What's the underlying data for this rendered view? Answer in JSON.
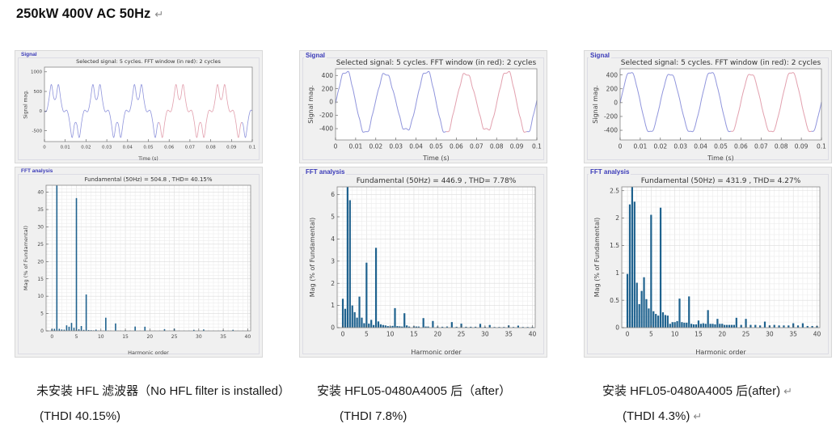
{
  "header": {
    "title": "250kW 400V AC 50Hz",
    "pilcrow": "↵"
  },
  "colors": {
    "bar": "#1f628e",
    "line_blue": "#9095dc",
    "line_red": "#e2a0ae",
    "panel_bg": "#f0f0f0",
    "panel_label": "#3a3ab8",
    "axes_border": "#888888",
    "grid_minor": "#ececec",
    "grid_major": "#dcdcdc",
    "tick_text": "#444444",
    "title_text": "#333333"
  },
  "columns": [
    {
      "caption": {
        "line1": "未安装 HFL 滤波器（No HFL filter is installed）",
        "line2": "(THDI 40.15%)",
        "pilcrow1": "",
        "pilcrow2": ""
      }
    },
    {
      "caption": {
        "line1": "安装 HFL05-0480A4005 后（after）",
        "line2": "(THDI 7.8%)",
        "pilcrow1": "",
        "pilcrow2": ""
      }
    },
    {
      "caption": {
        "line1": "安装 HFL05-0480A4005 后(after)",
        "line2": "(THDI 4.3%)",
        "pilcrow1": "↵",
        "pilcrow2": "↵"
      }
    }
  ],
  "chart_data": [
    {
      "type": "line",
      "panel_label": "Signal",
      "title": "Selected signal: 5 cycles. FFT window (in red): 2 cycles",
      "xlabel": "Time (s)",
      "ylabel": "Signal mag.",
      "xlim": [
        0,
        0.1
      ],
      "ylim": [
        -780,
        1120
      ],
      "xticks": [
        0,
        0.01,
        0.02,
        0.03,
        0.04,
        0.05,
        0.06,
        0.07,
        0.08,
        0.09,
        0.1
      ],
      "yticks": [
        -500,
        0,
        500,
        1000
      ],
      "grid": false,
      "fft_window": [
        0.055,
        0.095
      ],
      "harmonics": [
        [
          1,
          504.8,
          0
        ],
        [
          5,
          193,
          180
        ],
        [
          7,
          52,
          0
        ],
        [
          11,
          19,
          180
        ],
        [
          13,
          10.6,
          0
        ]
      ],
      "pad": [
        36,
        20,
        12,
        26
      ],
      "tick_font": 5.5,
      "title_font": 6.5,
      "line_w": 0.8
    },
    {
      "type": "bar",
      "panel_label": "FFT analysis",
      "title": "Fundamental (50Hz) = 504.8 , THD= 40.15%",
      "xlabel": "Harmonic order",
      "ylabel": "Mag (% of Fundamental)",
      "xlim": [
        -1.2,
        40.6
      ],
      "ylim": [
        0,
        42
      ],
      "xticks": [
        0,
        5,
        10,
        15,
        20,
        25,
        30,
        35,
        40
      ],
      "yticks": [
        0,
        5,
        10,
        15,
        20,
        25,
        30,
        35,
        40
      ],
      "grid": true,
      "grid_minor_x": 1,
      "grid_minor_y": 1,
      "bar_w": 1.6,
      "bars": [
        [
          0,
          0.6
        ],
        [
          0.5,
          0.6
        ],
        [
          1,
          100
        ],
        [
          1.5,
          0.6
        ],
        [
          2,
          0.4
        ],
        [
          2.5,
          0.35
        ],
        [
          3,
          1.6
        ],
        [
          3.5,
          1.2
        ],
        [
          4,
          2.3
        ],
        [
          4.5,
          0.9
        ],
        [
          5,
          38.3
        ],
        [
          5.5,
          0.5
        ],
        [
          6,
          1.4
        ],
        [
          6.5,
          0.3
        ],
        [
          7,
          10.5
        ],
        [
          7.5,
          0.25
        ],
        [
          8,
          0.2
        ],
        [
          8.5,
          0.15
        ],
        [
          9,
          0.35
        ],
        [
          9.5,
          0.1
        ],
        [
          10,
          0.12
        ],
        [
          10.5,
          0.1
        ],
        [
          11,
          3.8
        ],
        [
          11.5,
          0.12
        ],
        [
          12,
          0.1
        ],
        [
          13,
          2.15
        ],
        [
          13.5,
          0.1
        ],
        [
          14,
          0.1
        ],
        [
          15,
          0.15
        ],
        [
          16,
          0.1
        ],
        [
          17,
          1.25
        ],
        [
          18,
          0.08
        ],
        [
          19,
          1.2
        ],
        [
          20,
          0.07
        ],
        [
          21,
          0.07
        ],
        [
          22,
          0.08
        ],
        [
          23,
          0.5
        ],
        [
          24,
          0.06
        ],
        [
          25,
          0.65
        ],
        [
          26,
          0.06
        ],
        [
          27,
          0.06
        ],
        [
          28,
          0.06
        ],
        [
          29,
          0.3
        ],
        [
          30,
          0.05
        ],
        [
          31,
          0.4
        ],
        [
          32,
          0.05
        ],
        [
          33,
          0.05
        ],
        [
          34,
          0.05
        ],
        [
          35,
          0.2
        ],
        [
          36,
          0.05
        ],
        [
          37,
          0.3
        ],
        [
          38,
          0.04
        ],
        [
          39,
          0.05
        ],
        [
          40,
          0.04
        ]
      ],
      "pad": [
        38,
        22,
        14,
        32
      ],
      "tick_font": 6,
      "title_font": 7
    },
    {
      "type": "line",
      "panel_label": "Signal",
      "title": "Selected signal: 5 cycles. FFT window (in red): 2 cycles",
      "xlabel": "Time (s)",
      "ylabel": "Signal mag.",
      "xlim": [
        0,
        0.1
      ],
      "ylim": [
        -570,
        500
      ],
      "xticks": [
        0,
        0.01,
        0.02,
        0.03,
        0.04,
        0.05,
        0.06,
        0.07,
        0.08,
        0.09,
        0.1
      ],
      "yticks": [
        -400,
        -200,
        0,
        200,
        400
      ],
      "grid": false,
      "fft_window": [
        0.055,
        0.095
      ],
      "harmonics": [
        [
          1,
          446.9,
          0
        ],
        [
          1.5,
          25.7,
          -90
        ],
        [
          3.5,
          6.3,
          0
        ],
        [
          5,
          13.1,
          180
        ],
        [
          7,
          16.1,
          0
        ],
        [
          11,
          3.9,
          180
        ]
      ],
      "pad": [
        44,
        22,
        12,
        28
      ],
      "tick_font": 7.5,
      "title_font": 9,
      "line_w": 1
    },
    {
      "type": "bar",
      "panel_label": "FFT analysis",
      "title": "Fundamental (50Hz) = 446.9 , THD= 7.78%",
      "xlabel": "Harmonic order",
      "ylabel": "Mag (% of Fundamental)",
      "xlim": [
        -1.2,
        40.6
      ],
      "ylim": [
        0,
        6.35
      ],
      "xticks": [
        0,
        5,
        10,
        15,
        20,
        25,
        30,
        35,
        40
      ],
      "yticks": [
        0,
        1,
        2,
        3,
        4,
        5,
        6
      ],
      "grid": true,
      "grid_minor_x": 1,
      "grid_minor_y": 0.2,
      "bar_w": 2.2,
      "bars": [
        [
          0,
          1.3
        ],
        [
          0.5,
          0.85
        ],
        [
          1,
          100
        ],
        [
          1.5,
          5.75
        ],
        [
          2,
          1.0
        ],
        [
          2.5,
          0.7
        ],
        [
          3,
          0.45
        ],
        [
          3.5,
          1.4
        ],
        [
          4,
          0.45
        ],
        [
          4.5,
          0.2
        ],
        [
          5,
          2.93
        ],
        [
          5.5,
          0.18
        ],
        [
          6,
          0.35
        ],
        [
          6.5,
          0.12
        ],
        [
          7,
          3.6
        ],
        [
          7.5,
          0.28
        ],
        [
          8,
          0.15
        ],
        [
          8.5,
          0.12
        ],
        [
          9,
          0.1
        ],
        [
          9.5,
          0.07
        ],
        [
          10,
          0.06
        ],
        [
          10.5,
          0.08
        ],
        [
          11,
          0.88
        ],
        [
          11.5,
          0.07
        ],
        [
          12,
          0.06
        ],
        [
          12.5,
          0.05
        ],
        [
          13,
          0.65
        ],
        [
          13.5,
          0.1
        ],
        [
          14,
          0.05
        ],
        [
          15,
          0.06
        ],
        [
          15.5,
          0.05
        ],
        [
          16,
          0.05
        ],
        [
          17,
          0.43
        ],
        [
          17.5,
          0.05
        ],
        [
          18,
          0.05
        ],
        [
          19,
          0.3
        ],
        [
          20,
          0.05
        ],
        [
          21,
          0.04
        ],
        [
          22,
          0.05
        ],
        [
          23,
          0.25
        ],
        [
          24,
          0.04
        ],
        [
          25,
          0.18
        ],
        [
          26,
          0.04
        ],
        [
          27,
          0.04
        ],
        [
          28,
          0.04
        ],
        [
          29,
          0.17
        ],
        [
          30,
          0.04
        ],
        [
          31,
          0.12
        ],
        [
          32,
          0.03
        ],
        [
          33,
          0.03
        ],
        [
          34,
          0.03
        ],
        [
          35,
          0.1
        ],
        [
          36,
          0.03
        ],
        [
          37,
          0.09
        ],
        [
          38,
          0.03
        ],
        [
          39,
          0.03
        ],
        [
          40,
          0.03
        ]
      ],
      "pad": [
        46,
        24,
        14,
        36
      ],
      "tick_font": 7.5,
      "title_font": 9
    },
    {
      "type": "line",
      "panel_label": "Signal",
      "title": "Selected signal: 5 cycles. FFT window (in red): 2 cycles",
      "xlabel": "Time (s)",
      "ylabel": "Signal mag.",
      "xlim": [
        0,
        0.1
      ],
      "ylim": [
        -540,
        490
      ],
      "xticks": [
        0,
        0.01,
        0.02,
        0.03,
        0.04,
        0.05,
        0.06,
        0.07,
        0.08,
        0.09,
        0.1
      ],
      "yticks": [
        -400,
        -200,
        0,
        200,
        400
      ],
      "grid": false,
      "fft_window": [
        0.055,
        0.095
      ],
      "harmonics": [
        [
          1,
          431.9,
          0
        ],
        [
          0.5,
          9.7,
          0
        ],
        [
          1.5,
          9.9,
          -90
        ],
        [
          5,
          8.9,
          180
        ],
        [
          7,
          9.5,
          0
        ]
      ],
      "pad": [
        44,
        22,
        12,
        28
      ],
      "tick_font": 7.5,
      "title_font": 9,
      "line_w": 1
    },
    {
      "type": "bar",
      "panel_label": "FFT analysis",
      "title": "Fundamental (50Hz) = 431.9 , THD= 4.27%",
      "xlabel": "Harmonic order",
      "ylabel": "Mag (% of Fundamental)",
      "xlim": [
        -1.2,
        40.6
      ],
      "ylim": [
        0,
        2.57
      ],
      "xticks": [
        0,
        5,
        10,
        15,
        20,
        25,
        30,
        35,
        40
      ],
      "yticks": [
        0,
        0.5,
        1,
        1.5,
        2,
        2.5
      ],
      "grid": true,
      "grid_minor_x": 1,
      "grid_minor_y": 0.1,
      "bar_w": 2.2,
      "bars": [
        [
          0,
          0.98
        ],
        [
          0.5,
          2.25
        ],
        [
          1,
          100
        ],
        [
          1.5,
          2.3
        ],
        [
          2,
          0.82
        ],
        [
          2.5,
          0.43
        ],
        [
          3,
          0.67
        ],
        [
          3.5,
          0.92
        ],
        [
          4,
          0.52
        ],
        [
          4.5,
          0.35
        ],
        [
          5,
          2.06
        ],
        [
          5.5,
          0.3
        ],
        [
          6,
          0.25
        ],
        [
          6.5,
          0.22
        ],
        [
          7,
          2.19
        ],
        [
          7.5,
          0.28
        ],
        [
          8,
          0.23
        ],
        [
          8.5,
          0.22
        ],
        [
          9,
          0.07
        ],
        [
          9.5,
          0.1
        ],
        [
          10,
          0.1
        ],
        [
          10.5,
          0.12
        ],
        [
          11,
          0.53
        ],
        [
          11.5,
          0.1
        ],
        [
          12,
          0.09
        ],
        [
          12.5,
          0.09
        ],
        [
          13,
          0.57
        ],
        [
          13.5,
          0.07
        ],
        [
          14,
          0.06
        ],
        [
          14.5,
          0.06
        ],
        [
          15,
          0.13
        ],
        [
          15.5,
          0.07
        ],
        [
          16,
          0.08
        ],
        [
          16.5,
          0.07
        ],
        [
          17,
          0.32
        ],
        [
          17.5,
          0.07
        ],
        [
          18,
          0.07
        ],
        [
          18.5,
          0.06
        ],
        [
          19,
          0.16
        ],
        [
          19.5,
          0.07
        ],
        [
          20,
          0.07
        ],
        [
          20.5,
          0.05
        ],
        [
          21,
          0.05
        ],
        [
          21.5,
          0.05
        ],
        [
          22,
          0.05
        ],
        [
          22.5,
          0.05
        ],
        [
          23,
          0.18
        ],
        [
          24,
          0.05
        ],
        [
          25,
          0.16
        ],
        [
          26,
          0.05
        ],
        [
          27,
          0.05
        ],
        [
          28,
          0.04
        ],
        [
          29,
          0.11
        ],
        [
          30,
          0.04
        ],
        [
          31,
          0.05
        ],
        [
          32,
          0.04
        ],
        [
          33,
          0.04
        ],
        [
          34,
          0.04
        ],
        [
          35,
          0.08
        ],
        [
          36,
          0.04
        ],
        [
          37,
          0.08
        ],
        [
          38,
          0.03
        ],
        [
          39,
          0.03
        ],
        [
          40,
          0.03
        ]
      ],
      "pad": [
        46,
        24,
        14,
        36
      ],
      "tick_font": 7.5,
      "title_font": 9
    }
  ]
}
